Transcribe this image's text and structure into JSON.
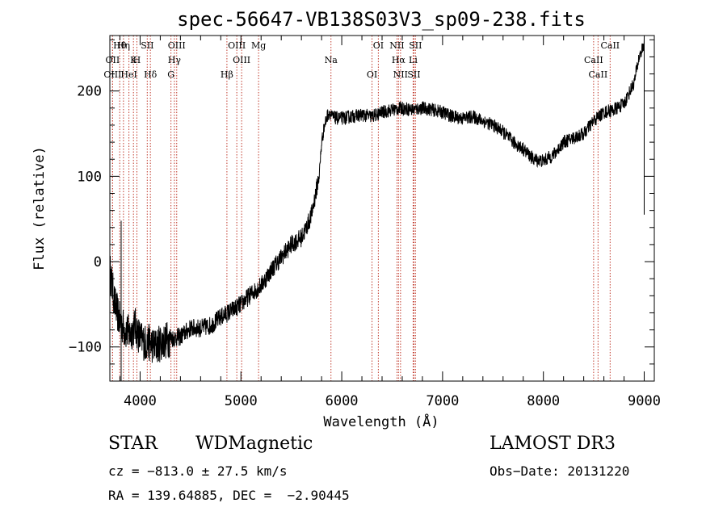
{
  "chart_data": {
    "type": "line",
    "title": "spec-56647-VB138S03V3_sp09-238.fits",
    "xlabel": "Wavelength (Å)",
    "ylabel": "Flux (relative)",
    "xlim": [
      3700,
      9100
    ],
    "ylim": [
      -140,
      265
    ],
    "xticks": [
      4000,
      5000,
      6000,
      7000,
      8000,
      9000
    ],
    "xtick_labels": [
      "4000",
      "5000",
      "6000",
      "7000",
      "8000",
      "9000"
    ],
    "yticks": [
      -100,
      0,
      100,
      200
    ],
    "ytick_labels": [
      "−100",
      "0",
      "100",
      "200"
    ],
    "series": [
      {
        "name": "flux",
        "x": [
          3700,
          3750,
          3800,
          3850,
          3900,
          3950,
          4000,
          4050,
          4100,
          4150,
          4200,
          4300,
          4400,
          4500,
          4600,
          4700,
          4800,
          4900,
          5000,
          5100,
          5200,
          5300,
          5400,
          5500,
          5600,
          5650,
          5700,
          5750,
          5780,
          5800,
          5830,
          5860,
          5880,
          5900,
          5950,
          6000,
          6100,
          6200,
          6300,
          6400,
          6500,
          6600,
          6700,
          6800,
          6900,
          7000,
          7100,
          7200,
          7300,
          7400,
          7500,
          7600,
          7700,
          7800,
          7900,
          8000,
          8100,
          8200,
          8300,
          8400,
          8500,
          8600,
          8700,
          8800,
          8900,
          8950,
          9000
        ],
        "y": [
          -10,
          -50,
          -70,
          -80,
          -85,
          -75,
          -90,
          -95,
          -95,
          -100,
          -95,
          -90,
          -88,
          -78,
          -78,
          -75,
          -65,
          -58,
          -50,
          -38,
          -28,
          -10,
          5,
          20,
          28,
          40,
          55,
          85,
          105,
          140,
          160,
          172,
          175,
          170,
          168,
          168,
          170,
          172,
          170,
          175,
          178,
          180,
          178,
          180,
          178,
          175,
          170,
          168,
          170,
          165,
          160,
          152,
          140,
          132,
          120,
          118,
          125,
          140,
          145,
          150,
          165,
          175,
          178,
          185,
          210,
          240,
          255
        ]
      }
    ],
    "spike": {
      "x": 3812,
      "y_low": -140,
      "y_high": 48
    },
    "edge_drop": {
      "x": 9000,
      "y_from": 255,
      "y_to": 55
    },
    "lines": [
      {
        "label": "Hθ",
        "x": 3798
      },
      {
        "label": "K",
        "x": 3934
      },
      {
        "label": "Hδ",
        "x": 4102
      },
      {
        "label": "OIII",
        "x": 4363
      },
      {
        "label": "OII",
        "x": 3727
      },
      {
        "label": "HeI",
        "x": 3889
      },
      {
        "label": "SII",
        "x": 4071
      },
      {
        "label": "Hγ",
        "x": 4340
      },
      {
        "label": "OIII",
        "x": 3727
      },
      {
        "label": "Hη",
        "x": 3835
      },
      {
        "label": "H",
        "x": 3968
      },
      {
        "label": "G",
        "x": 4306
      },
      {
        "label": "OIII",
        "x": 4959
      },
      {
        "label": "OIII",
        "x": 5007
      },
      {
        "label": "Hβ",
        "x": 4861
      },
      {
        "label": "Mg",
        "x": 5175
      },
      {
        "label": "Na",
        "x": 5893
      },
      {
        "label": "OI",
        "x": 6300
      },
      {
        "label": "OI",
        "x": 6363
      },
      {
        "label": "Hα",
        "x": 6563
      },
      {
        "label": "SII",
        "x": 6716
      },
      {
        "label": "NII",
        "x": 6548
      },
      {
        "label": "Li",
        "x": 6708
      },
      {
        "label": "NII",
        "x": 6583
      },
      {
        "label": "SII",
        "x": 6731
      },
      {
        "label": "CaII",
        "x": 8498
      },
      {
        "label": "CaII",
        "x": 8542
      },
      {
        "label": "CaII",
        "x": 8662
      }
    ]
  },
  "info": {
    "class": "STAR",
    "subclass": "WDMagnetic",
    "survey": "LAMOST DR3",
    "cz": "cz = −813.0 ± 27.5 km/s",
    "obs_date": "Obs−Date: 20131220",
    "coords": "RA = 139.64885, DEC =  −2.90445"
  }
}
